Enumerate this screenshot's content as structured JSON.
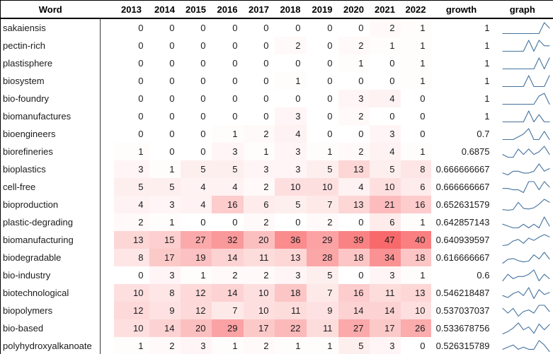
{
  "table": {
    "columns": [
      "Word",
      "2013",
      "2014",
      "2015",
      "2016",
      "2017",
      "2018",
      "2019",
      "2020",
      "2021",
      "2022",
      "growth",
      "graph"
    ],
    "years": [
      "2013",
      "2014",
      "2015",
      "2016",
      "2017",
      "2018",
      "2019",
      "2020",
      "2021",
      "2022"
    ],
    "rows": [
      {
        "word": "sakaiensis",
        "values": [
          0,
          0,
          0,
          0,
          0,
          0,
          0,
          0,
          2,
          1
        ],
        "growth": "1"
      },
      {
        "word": "pectin-rich",
        "values": [
          0,
          0,
          0,
          0,
          0,
          2,
          0,
          2,
          1,
          1
        ],
        "growth": "1"
      },
      {
        "word": "plastisphere",
        "values": [
          0,
          0,
          0,
          0,
          0,
          0,
          0,
          1,
          0,
          1
        ],
        "growth": "1"
      },
      {
        "word": "biosystem",
        "values": [
          0,
          0,
          0,
          0,
          0,
          1,
          0,
          0,
          0,
          1
        ],
        "growth": "1"
      },
      {
        "word": "bio-foundry",
        "values": [
          0,
          0,
          0,
          0,
          0,
          0,
          0,
          3,
          4,
          0
        ],
        "growth": "1"
      },
      {
        "word": "biomanufactures",
        "values": [
          0,
          0,
          0,
          0,
          0,
          3,
          0,
          2,
          0,
          0
        ],
        "growth": "1"
      },
      {
        "word": "bioengineers",
        "values": [
          0,
          0,
          0,
          1,
          2,
          4,
          0,
          0,
          3,
          0
        ],
        "growth": "0.7"
      },
      {
        "word": "biorefineries",
        "values": [
          1,
          0,
          0,
          3,
          1,
          3,
          1,
          2,
          4,
          1
        ],
        "growth": "0.6875"
      },
      {
        "word": "bioplastics",
        "values": [
          3,
          1,
          5,
          5,
          3,
          3,
          5,
          13,
          5,
          8
        ],
        "growth": "0.666666667"
      },
      {
        "word": "cell-free",
        "values": [
          5,
          5,
          4,
          4,
          2,
          10,
          10,
          4,
          10,
          6
        ],
        "growth": "0.666666667"
      },
      {
        "word": "bioproduction",
        "values": [
          4,
          3,
          4,
          16,
          6,
          5,
          7,
          13,
          21,
          16
        ],
        "growth": "0.652631579"
      },
      {
        "word": "plastic-degrading",
        "values": [
          2,
          1,
          0,
          0,
          2,
          0,
          2,
          0,
          6,
          1
        ],
        "growth": "0.642857143"
      },
      {
        "word": "biomanufacturing",
        "values": [
          13,
          15,
          27,
          32,
          20,
          36,
          29,
          39,
          47,
          40
        ],
        "growth": "0.640939597"
      },
      {
        "word": "biodegradable",
        "values": [
          8,
          17,
          19,
          14,
          11,
          13,
          28,
          18,
          34,
          18
        ],
        "growth": "0.616666667"
      },
      {
        "word": "bio-industry",
        "values": [
          0,
          3,
          1,
          2,
          2,
          3,
          5,
          0,
          3,
          1
        ],
        "growth": "0.6"
      },
      {
        "word": "biotechnological",
        "values": [
          10,
          8,
          12,
          14,
          10,
          18,
          7,
          16,
          11,
          13
        ],
        "growth": "0.546218487"
      },
      {
        "word": "biopolymers",
        "values": [
          12,
          9,
          12,
          7,
          10,
          11,
          9,
          14,
          14,
          10
        ],
        "growth": "0.537037037"
      },
      {
        "word": "bio-based",
        "values": [
          10,
          14,
          20,
          29,
          17,
          22,
          11,
          27,
          17,
          26
        ],
        "growth": "0.533678756"
      },
      {
        "word": "polyhydroxyalkanoate",
        "values": [
          1,
          2,
          3,
          1,
          2,
          1,
          1,
          5,
          3,
          0
        ],
        "growth": "0.526315789"
      }
    ]
  },
  "heat_scale": {
    "min_value": 0,
    "max_value": 47,
    "min_color": "#FFFFFF",
    "max_color": "#F8696B"
  },
  "colors": {
    "sparkline": "#44729E",
    "border": "#000000",
    "text": "#1B1B1B"
  }
}
